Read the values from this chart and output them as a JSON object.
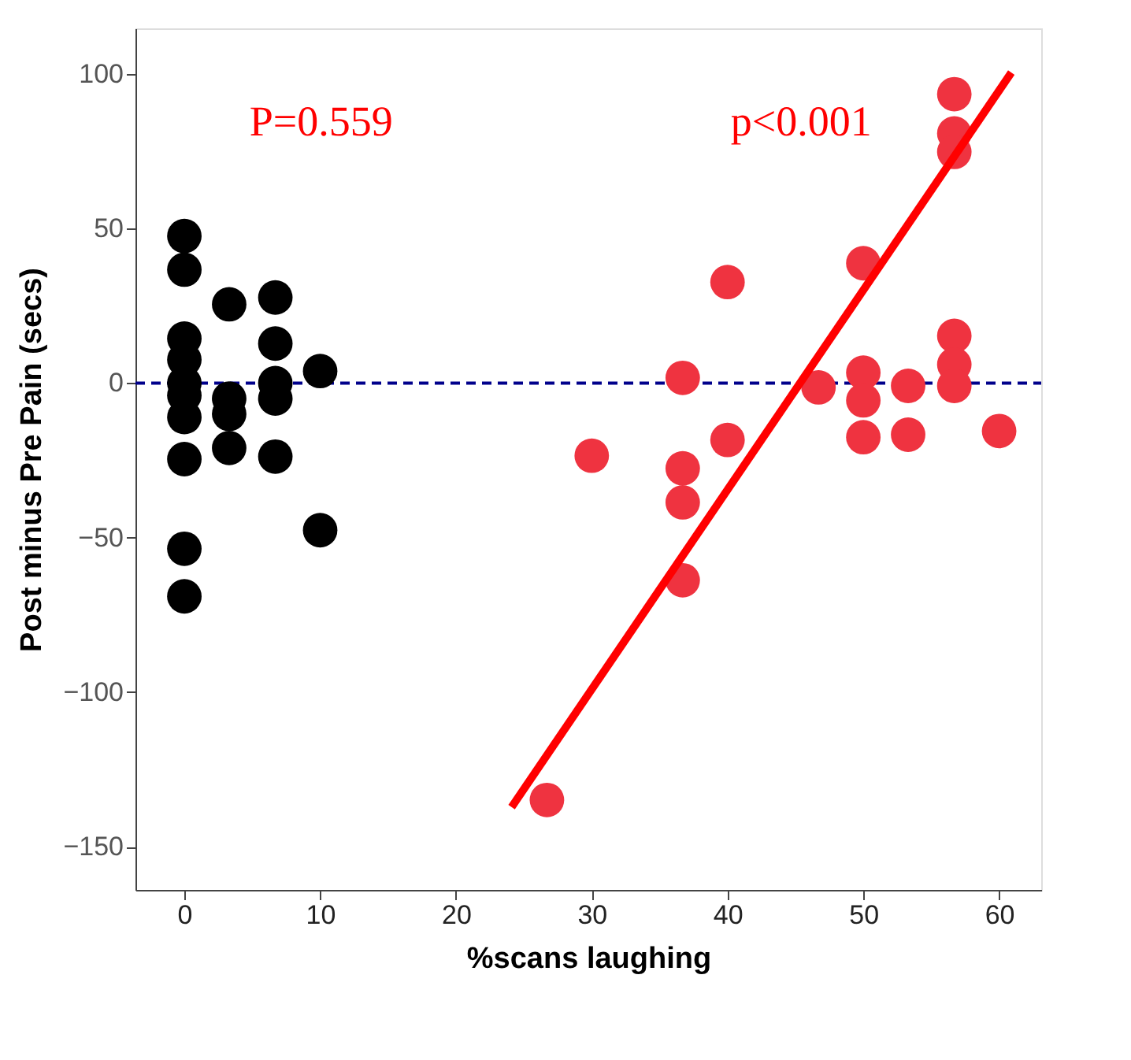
{
  "chart_data": {
    "type": "scatter",
    "xlabel": "%scans laughing",
    "ylabel": "Post minus Pre Pain (secs)",
    "xlim": [
      -3.6,
      63.1
    ],
    "ylim": [
      -164,
      114.8
    ],
    "xticks": [
      0,
      10,
      20,
      30,
      40,
      50,
      60
    ],
    "yticks": [
      -150,
      -100,
      -50,
      0,
      50,
      100
    ],
    "grid": false,
    "marker": "circle",
    "series": [
      {
        "color": "#000000",
        "x": [
          0,
          0,
          0,
          0,
          0,
          0,
          0,
          0,
          0,
          0,
          3.3,
          3.3,
          3.3,
          3.3,
          6.7,
          6.7,
          6.7,
          6.7,
          6.7,
          10,
          10
        ],
        "values": [
          47.6,
          36.7,
          14.4,
          7.6,
          0,
          -4,
          -11,
          -24.6,
          -53.6,
          -69,
          25.5,
          -5,
          -10,
          -21,
          27.7,
          12.8,
          0,
          -5,
          -23.8,
          3.9,
          -47.6
        ]
      },
      {
        "color": "#ef3340",
        "x": [
          26.7,
          30,
          36.7,
          36.7,
          36.7,
          36.7,
          40,
          40,
          46.7,
          50,
          50,
          50,
          50,
          53.3,
          53.3,
          56.7,
          56.7,
          56.7,
          56.7,
          56.7,
          56.7,
          60
        ],
        "values": [
          -134.9,
          -23.5,
          1.7,
          -27.6,
          -38.6,
          -63.8,
          32.7,
          -18.4,
          -1.4,
          38.8,
          3.4,
          -5.6,
          -17.5,
          -0.9,
          -16.7,
          93.5,
          80.8,
          74.8,
          15.3,
          6,
          -0.9,
          -15.5
        ]
      },
      {
        "type": "line",
        "color": "#ff0000",
        "line_style": "solid",
        "marker": "none",
        "x": [
          24.1,
          60.9
        ],
        "values": [
          -137.2,
          100.5
        ]
      }
    ],
    "ref_lines": [
      {
        "axis": "y",
        "value": 0,
        "color": "#00008b",
        "line_style": "dashed"
      }
    ],
    "annotations": [
      "P=0.559",
      "p<0.001"
    ]
  }
}
